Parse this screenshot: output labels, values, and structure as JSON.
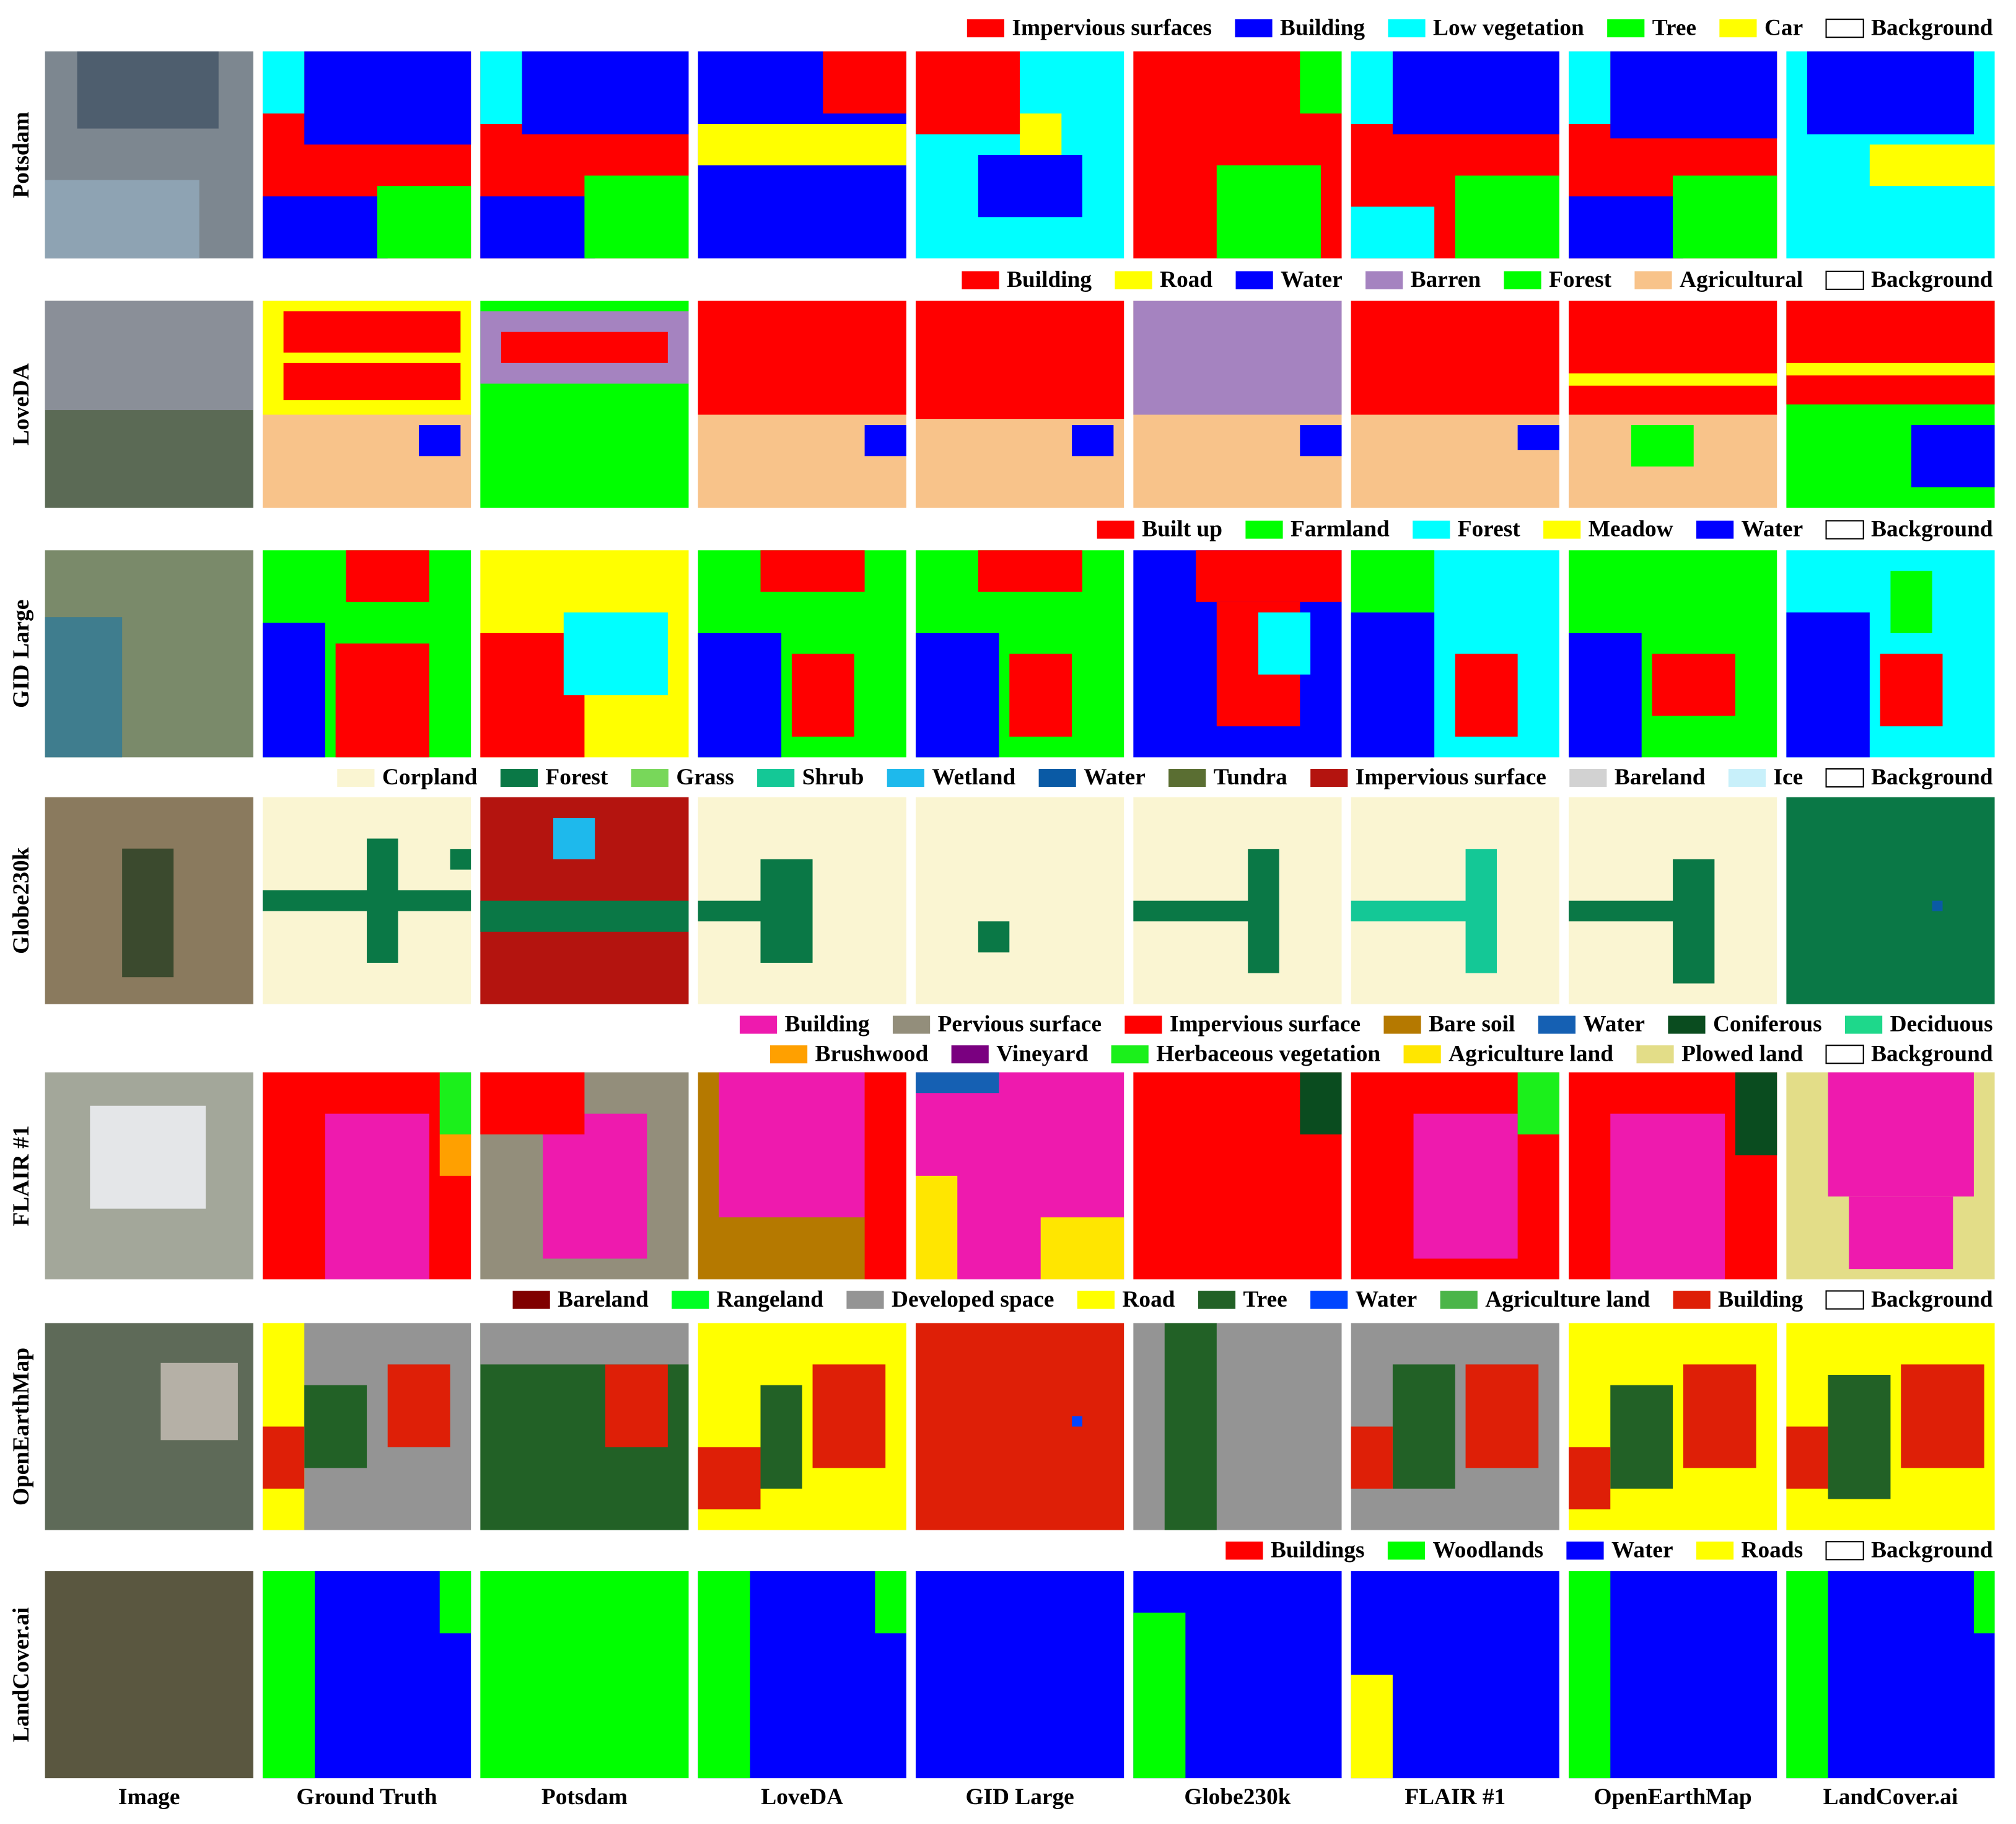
{
  "rows": [
    {
      "name": "Potsdam",
      "legend": [
        [
          {
            "label": "Impervious surfaces",
            "color": "#ff0000"
          },
          {
            "label": "Building",
            "color": "#0000ff"
          },
          {
            "label": "Low vegetation",
            "color": "#00ffff"
          },
          {
            "label": "Tree",
            "color": "#00ff00"
          },
          {
            "label": "Car",
            "color": "#ffff00"
          },
          {
            "label": "Background",
            "color": "#ffffff"
          }
        ]
      ]
    },
    {
      "name": "LoveDA",
      "legend": [
        [
          {
            "label": "Building",
            "color": "#ff0000"
          },
          {
            "label": "Road",
            "color": "#ffff00"
          },
          {
            "label": "Water",
            "color": "#0000ff"
          },
          {
            "label": "Barren",
            "color": "#a583c0"
          },
          {
            "label": "Forest",
            "color": "#00ff00"
          },
          {
            "label": "Agricultural",
            "color": "#f8c38a"
          },
          {
            "label": "Background",
            "color": "#ffffff"
          }
        ]
      ]
    },
    {
      "name": "GID Large",
      "legend": [
        [
          {
            "label": "Built up",
            "color": "#ff0000"
          },
          {
            "label": "Farmland",
            "color": "#00ff00"
          },
          {
            "label": "Forest",
            "color": "#00ffff"
          },
          {
            "label": "Meadow",
            "color": "#ffff00"
          },
          {
            "label": "Water",
            "color": "#0000ff"
          },
          {
            "label": "Background",
            "color": "#ffffff"
          }
        ]
      ]
    },
    {
      "name": "Globe230k",
      "legend": [
        [
          {
            "label": "Corpland",
            "color": "#faf5d2"
          },
          {
            "label": "Forest",
            "color": "#0a7846"
          },
          {
            "label": "Grass",
            "color": "#78d75a"
          },
          {
            "label": "Shrub",
            "color": "#14c896"
          },
          {
            "label": "Wetland",
            "color": "#1eb9ec"
          },
          {
            "label": "Water",
            "color": "#0a5aa5"
          },
          {
            "label": "Tundra",
            "color": "#5a6e32"
          },
          {
            "label": "Impervious surface",
            "color": "#b4140f"
          },
          {
            "label": "Bareland",
            "color": "#d2d2d2"
          },
          {
            "label": "Ice",
            "color": "#c8f0fa"
          },
          {
            "label": "Background",
            "color": "#ffffff"
          }
        ]
      ]
    },
    {
      "name": "FLAIR #1",
      "legend": [
        [
          {
            "label": "Building",
            "color": "#ee1aae"
          },
          {
            "label": "Pervious surface",
            "color": "#938e7b"
          },
          {
            "label": "Impervious surface",
            "color": "#ff0000"
          },
          {
            "label": "Bare soil",
            "color": "#b57900"
          },
          {
            "label": "Water",
            "color": "#1560b3"
          },
          {
            "label": "Coniferous",
            "color": "#0a4c1f"
          },
          {
            "label": "Deciduous",
            "color": "#1ed88b"
          }
        ],
        [
          {
            "label": "Brushwood",
            "color": "#ffa000"
          },
          {
            "label": "Vineyard",
            "color": "#7a0080"
          },
          {
            "label": "Herbaceous vegetation",
            "color": "#1bf01b"
          },
          {
            "label": "Agriculture land",
            "color": "#ffe600"
          },
          {
            "label": "Plowed land",
            "color": "#e3dd88"
          },
          {
            "label": "Background",
            "color": "#ffffff"
          }
        ]
      ]
    },
    {
      "name": "OpenEarthMap",
      "legend": [
        [
          {
            "label": "Bareland",
            "color": "#800000"
          },
          {
            "label": "Rangeland",
            "color": "#00ff24"
          },
          {
            "label": "Developed space",
            "color": "#949494"
          },
          {
            "label": "Road",
            "color": "#ffff00"
          },
          {
            "label": "Tree",
            "color": "#226126"
          },
          {
            "label": "Water",
            "color": "#0045ff"
          },
          {
            "label": "Agriculture land",
            "color": "#4bb549"
          },
          {
            "label": "Building",
            "color": "#de1f07"
          },
          {
            "label": "Background",
            "color": "#ffffff"
          }
        ]
      ]
    },
    {
      "name": "LandCover.ai",
      "legend": [
        [
          {
            "label": "Buildings",
            "color": "#ff0000"
          },
          {
            "label": "Woodlands",
            "color": "#00ff00"
          },
          {
            "label": "Water",
            "color": "#0000ff"
          },
          {
            "label": "Roads",
            "color": "#ffff00"
          },
          {
            "label": "Background",
            "color": "#ffffff"
          }
        ]
      ]
    }
  ],
  "columns": [
    "Image",
    "Ground Truth",
    "Potsdam",
    "LoveDA",
    "GID Large",
    "Globe230k",
    "FLAIR #1",
    "OpenEarthMap",
    "LandCover.ai"
  ]
}
